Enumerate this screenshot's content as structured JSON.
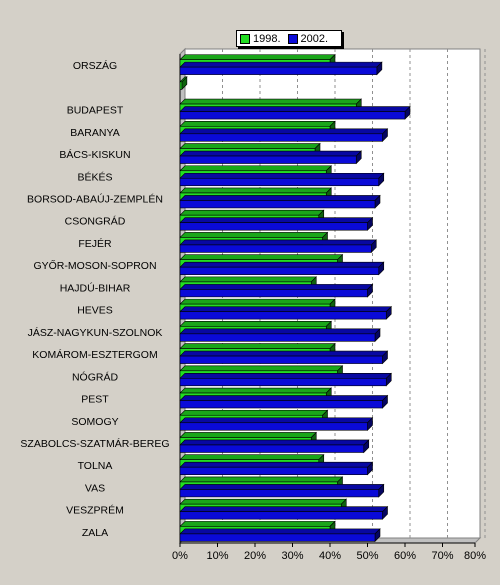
{
  "chart_data": {
    "type": "bar",
    "orientation": "horizontal",
    "categories": [
      "ORSZÁG",
      "",
      "BUDAPEST",
      "BARANYA",
      "BÁCS-KISKUN",
      "BÉKÉS",
      "BORSOD-ABAÚJ-ZEMPLÉN",
      "CSONGRÁD",
      "FEJÉR",
      "GYŐR-MOSON-SOPRON",
      "HAJDÚ-BIHAR",
      "HEVES",
      "JÁSZ-NAGYKUN-SZOLNOK",
      "KOMÁROM-ESZTERGOM",
      "NÓGRÁD",
      "PEST",
      "SOMOGY",
      "SZABOLCS-SZATMÁR-BEREG",
      "TOLNA",
      "VAS",
      "VESZPRÉM",
      "ZALA"
    ],
    "series": [
      {
        "name": "1998.",
        "color": "#22dd22",
        "values": [
          40,
          0.5,
          47,
          40,
          36,
          39,
          39,
          37,
          38,
          42,
          35,
          40,
          39,
          40,
          42,
          39,
          38,
          35,
          37,
          42,
          43,
          40
        ]
      },
      {
        "name": "2002.",
        "color": "#0a0ad8",
        "values": [
          52.5,
          null,
          60,
          54,
          47,
          53,
          52,
          50,
          51,
          53,
          50,
          55,
          52,
          54,
          55,
          54,
          50,
          49,
          50,
          53,
          54,
          52
        ]
      }
    ],
    "xlim": [
      0,
      80
    ],
    "xticks": [
      "0%",
      "10%",
      "20%",
      "30%",
      "40%",
      "50%",
      "60%",
      "70%",
      "80%"
    ],
    "grid": true,
    "legend": "top"
  }
}
